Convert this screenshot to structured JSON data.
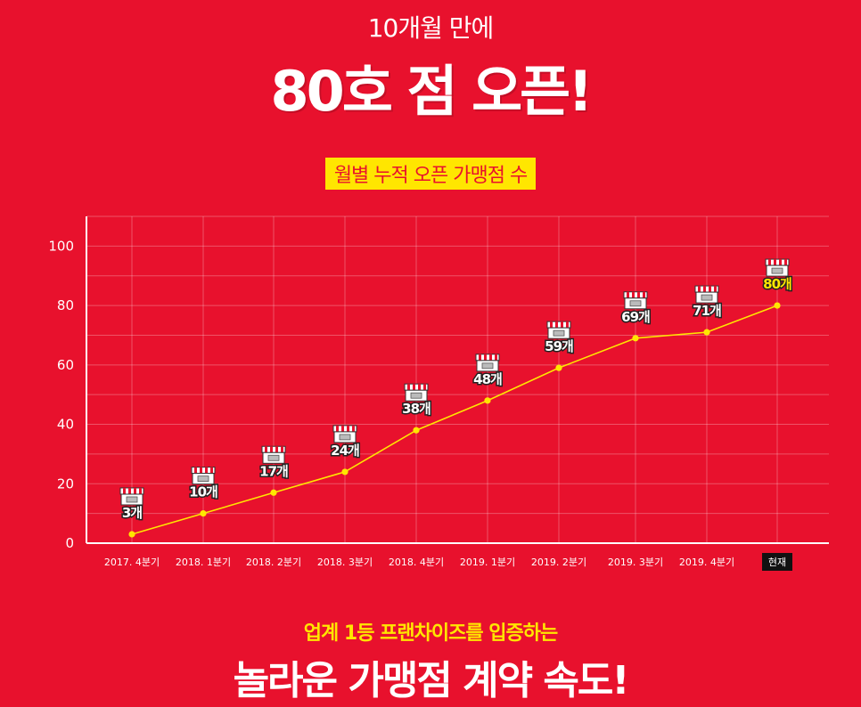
{
  "header": {
    "subtitle": "10개월 만에",
    "title": "80호 점 오픈!",
    "chart_label": "월별 누적 오픈 가맹점 수"
  },
  "footer": {
    "subtitle": "업계 1등 프랜차이즈를 입증하는",
    "title": "놀라운 가맹점 계약 속도!"
  },
  "colors": {
    "background": "#e8112d",
    "line": "#ffe600",
    "highlight_label": "#ffe600"
  },
  "chart_data": {
    "type": "line",
    "title": "월별 누적 오픈 가맹점 수",
    "xlabel": "",
    "ylabel": "",
    "categories": [
      "2017. 4분기",
      "2018. 1분기",
      "2018. 2분기",
      "2018. 3분기",
      "2018. 4분기",
      "2019. 1분기",
      "2019. 2분기",
      "2019. 3분기",
      "2019. 4분기",
      "현재"
    ],
    "values": [
      3,
      10,
      17,
      24,
      38,
      48,
      59,
      69,
      71,
      80
    ],
    "data_labels": [
      "3개",
      "10개",
      "17개",
      "24개",
      "38개",
      "48개",
      "59개",
      "69개",
      "71개",
      "80개"
    ],
    "ylim": [
      0,
      110
    ],
    "yticks": [
      0,
      20,
      40,
      60,
      80,
      100
    ],
    "grid": true,
    "highlight_last": true,
    "marker_icon": "store-icon"
  }
}
